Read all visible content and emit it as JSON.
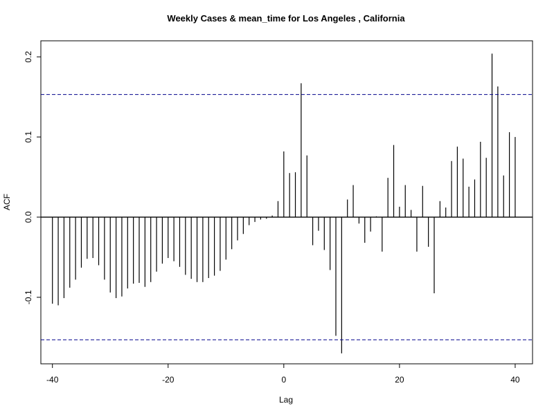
{
  "chart_data": {
    "type": "bar",
    "title": "Weekly Cases & mean_time for Los Angeles , California",
    "xlabel": "Lag",
    "ylabel": "ACF",
    "xlim": [
      -42,
      43
    ],
    "ylim": [
      -0.183,
      0.22
    ],
    "x_ticks": [
      -40,
      -20,
      0,
      20,
      40
    ],
    "y_ticks": [
      -0.1,
      0.0,
      0.1,
      0.2
    ],
    "x_tick_labels": [
      "-40",
      "-20",
      "0",
      "20",
      "40"
    ],
    "y_tick_labels": [
      "-0.1",
      "0.0",
      "0.1",
      "0.2"
    ],
    "confidence_bound": 0.153,
    "colors": {
      "bars": "#000000",
      "confidence": "#00008b",
      "zero_line": "#000000"
    },
    "x": [
      -40,
      -39,
      -38,
      -37,
      -36,
      -35,
      -34,
      -33,
      -32,
      -31,
      -30,
      -29,
      -28,
      -27,
      -26,
      -25,
      -24,
      -23,
      -22,
      -21,
      -20,
      -19,
      -18,
      -17,
      -16,
      -15,
      -14,
      -13,
      -12,
      -11,
      -10,
      -9,
      -8,
      -7,
      -6,
      -5,
      -4,
      -3,
      -2,
      -1,
      0,
      1,
      2,
      3,
      4,
      5,
      6,
      7,
      8,
      9,
      10,
      11,
      12,
      13,
      14,
      15,
      16,
      17,
      18,
      19,
      20,
      21,
      22,
      23,
      24,
      25,
      26,
      27,
      28,
      29,
      30,
      31,
      32,
      33,
      34,
      35,
      36,
      37,
      38,
      39,
      40
    ],
    "values": [
      -0.108,
      -0.11,
      -0.101,
      -0.088,
      -0.078,
      -0.063,
      -0.052,
      -0.051,
      -0.06,
      -0.078,
      -0.094,
      -0.101,
      -0.099,
      -0.089,
      -0.083,
      -0.082,
      -0.087,
      -0.081,
      -0.068,
      -0.058,
      -0.051,
      -0.055,
      -0.062,
      -0.072,
      -0.077,
      -0.081,
      -0.081,
      -0.076,
      -0.073,
      -0.067,
      -0.053,
      -0.04,
      -0.029,
      -0.021,
      -0.01,
      -0.006,
      -0.003,
      -0.002,
      0.002,
      0.02,
      0.082,
      0.055,
      0.056,
      0.167,
      0.077,
      -0.035,
      -0.017,
      -0.041,
      -0.066,
      -0.148,
      -0.17,
      0.022,
      0.04,
      -0.008,
      -0.032,
      -0.018,
      0.001,
      -0.043,
      0.049,
      0.09,
      0.013,
      0.04,
      0.009,
      -0.043,
      0.039,
      -0.037,
      -0.095,
      0.02,
      0.012,
      0.07,
      0.088,
      0.073,
      0.038,
      0.047,
      0.094,
      0.074,
      0.204,
      0.163,
      0.052,
      0.106,
      0.1
    ]
  }
}
